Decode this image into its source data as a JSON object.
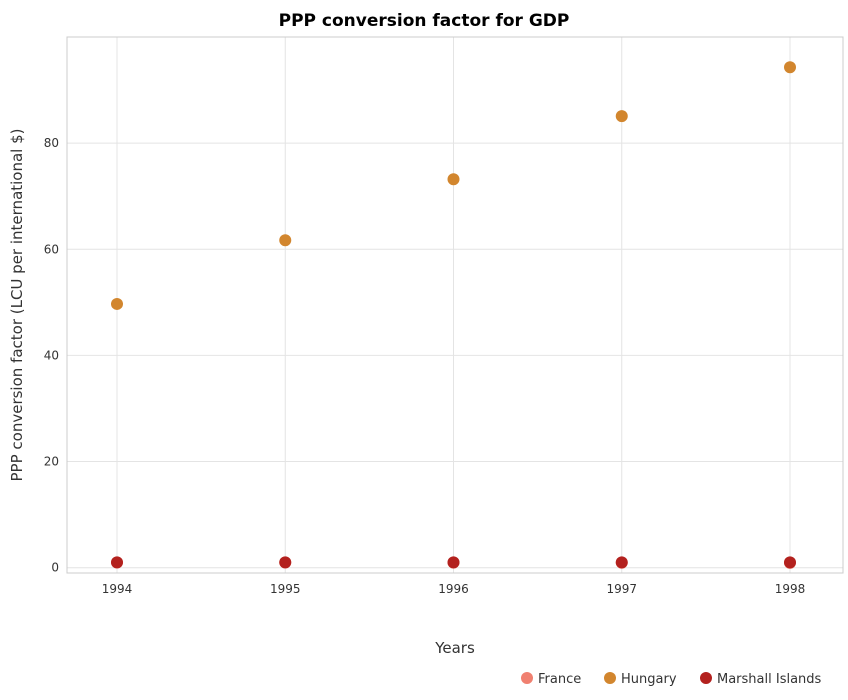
{
  "chart_data": {
    "type": "scatter",
    "title": "PPP conversion factor for GDP",
    "xlabel": "Years",
    "ylabel": "PPP conversion factor (LCU per international $)",
    "x": [
      "1994",
      "1995",
      "1996",
      "1997",
      "1998"
    ],
    "yticks": [
      "0",
      "20",
      "40",
      "60",
      "80"
    ],
    "ylim": [
      -1,
      100
    ],
    "grid": true,
    "legend_position": "bottom-right",
    "series": [
      {
        "name": "France",
        "color": "#f08070",
        "values": [
          0.98,
          0.97,
          0.95,
          0.93,
          0.91
        ]
      },
      {
        "name": "Hungary",
        "color": "#d2862e",
        "values": [
          49.7,
          61.7,
          73.2,
          85.1,
          94.3
        ]
      },
      {
        "name": "Marshall Islands",
        "color": "#b3211e",
        "values": [
          1.0,
          1.0,
          1.0,
          1.0,
          1.0
        ]
      }
    ]
  }
}
